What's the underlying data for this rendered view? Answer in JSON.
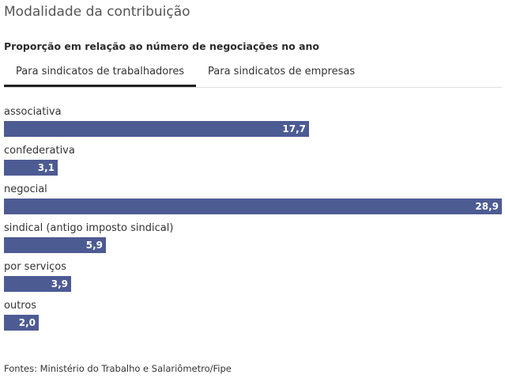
{
  "title": "Modalidade da contribuição",
  "subtitle": "Proporção em relação ao número de negociações no ano",
  "tabs": [
    {
      "label": "Para sindicatos de trabalhadores",
      "active": true
    },
    {
      "label": "Para sindicatos de empresas",
      "active": false
    }
  ],
  "chart_data": {
    "type": "bar",
    "orientation": "horizontal",
    "categories": [
      "associativa",
      "confederativa",
      "negocial",
      "sindical (antigo imposto sindical)",
      "por serviços",
      "outros"
    ],
    "values": [
      17.7,
      3.1,
      28.9,
      5.9,
      3.9,
      2.0
    ],
    "value_labels": [
      "17,7",
      "3,1",
      "28,9",
      "5,9",
      "3,9",
      "2,0"
    ],
    "xlim": [
      0,
      28.9
    ],
    "bar_color": "#4d5b93",
    "grid": false
  },
  "source": "Fontes: Ministério do Trabalho e Salariômetro/Fipe"
}
